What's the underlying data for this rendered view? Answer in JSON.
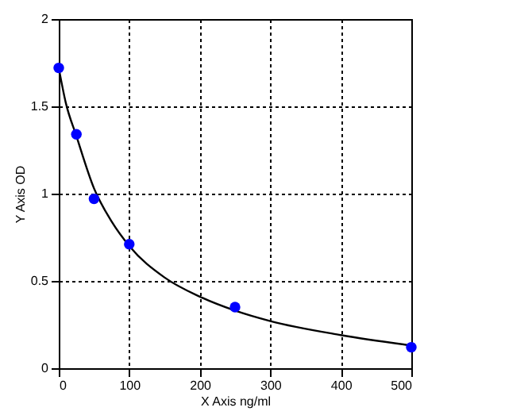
{
  "chart_data": {
    "type": "scatter",
    "xlabel": "X Axis ng/ml",
    "ylabel": "Y Axis OD",
    "xlim": [
      0,
      500
    ],
    "ylim": [
      0,
      2
    ],
    "xticks": [
      0,
      100,
      200,
      300,
      400,
      500
    ],
    "yticks": [
      0,
      0.5,
      1,
      1.5,
      2
    ],
    "grid": true,
    "marker": "circle",
    "series": [
      {
        "type": "scatter",
        "color": "#0000ff",
        "x": [
          0,
          25,
          50,
          100,
          250,
          500
        ],
        "values": [
          1.72,
          1.34,
          0.97,
          0.71,
          0.35,
          0.12
        ]
      },
      {
        "type": "line",
        "color": "#000000",
        "marker": "none",
        "x": [
          0,
          10,
          25,
          50,
          75,
          100,
          150,
          200,
          250,
          300,
          400,
          500
        ],
        "values": [
          1.72,
          1.52,
          1.33,
          1.03,
          0.84,
          0.7,
          0.52,
          0.41,
          0.33,
          0.27,
          0.19,
          0.13
        ]
      }
    ]
  }
}
